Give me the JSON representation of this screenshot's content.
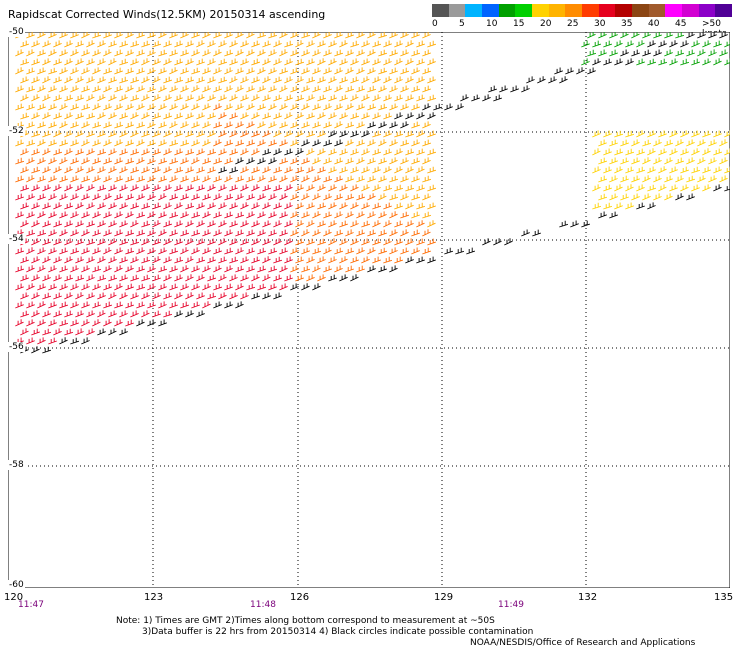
{
  "title": "Rapidscat Corrected Winds(12.5KM) 20150314 ascending",
  "legend": {
    "labels": [
      "0",
      "5",
      "10",
      "15",
      "20",
      "25",
      "30",
      "35",
      "40",
      "45",
      ">50 knots"
    ],
    "colors": [
      "#555555",
      "#9a9a9a",
      "#00b4ff",
      "#0064ff",
      "#00a000",
      "#00d000",
      "#ffd200",
      "#ffb400",
      "#ff8c00",
      "#ff3c00",
      "#e6001e",
      "#b40000",
      "#8b4513",
      "#a05a2c",
      "#ff00ff",
      "#d200d2",
      "#8c00c8",
      "#500096"
    ]
  },
  "axes": {
    "lon_ticks": [
      "120",
      "123",
      "126",
      "129",
      "132",
      "135"
    ],
    "lat_ticks": [
      "-50",
      "-52",
      "-54",
      "-56",
      "-58",
      "-60"
    ]
  },
  "times": [
    "11:47",
    "11:48",
    "11:49"
  ],
  "notes": {
    "line1": "Note: 1) Times are GMT 2)Times along bottom correspond to measurement at ~50S",
    "line2": "3)Data buffer is 22 hrs from 20150314 4) Black circles indicate possible contamination",
    "credit": "NOAA/NESDIS/Office of Research and Applications"
  },
  "colors": {
    "plot_frame": "#000000",
    "grid": "#000000",
    "time_text": "#7a007a",
    "flag_colors": [
      "#e60028",
      "#ff6a00",
      "#ffaa00",
      "#ffd200",
      "#ffff00",
      "#00a000",
      "#000000"
    ]
  }
}
